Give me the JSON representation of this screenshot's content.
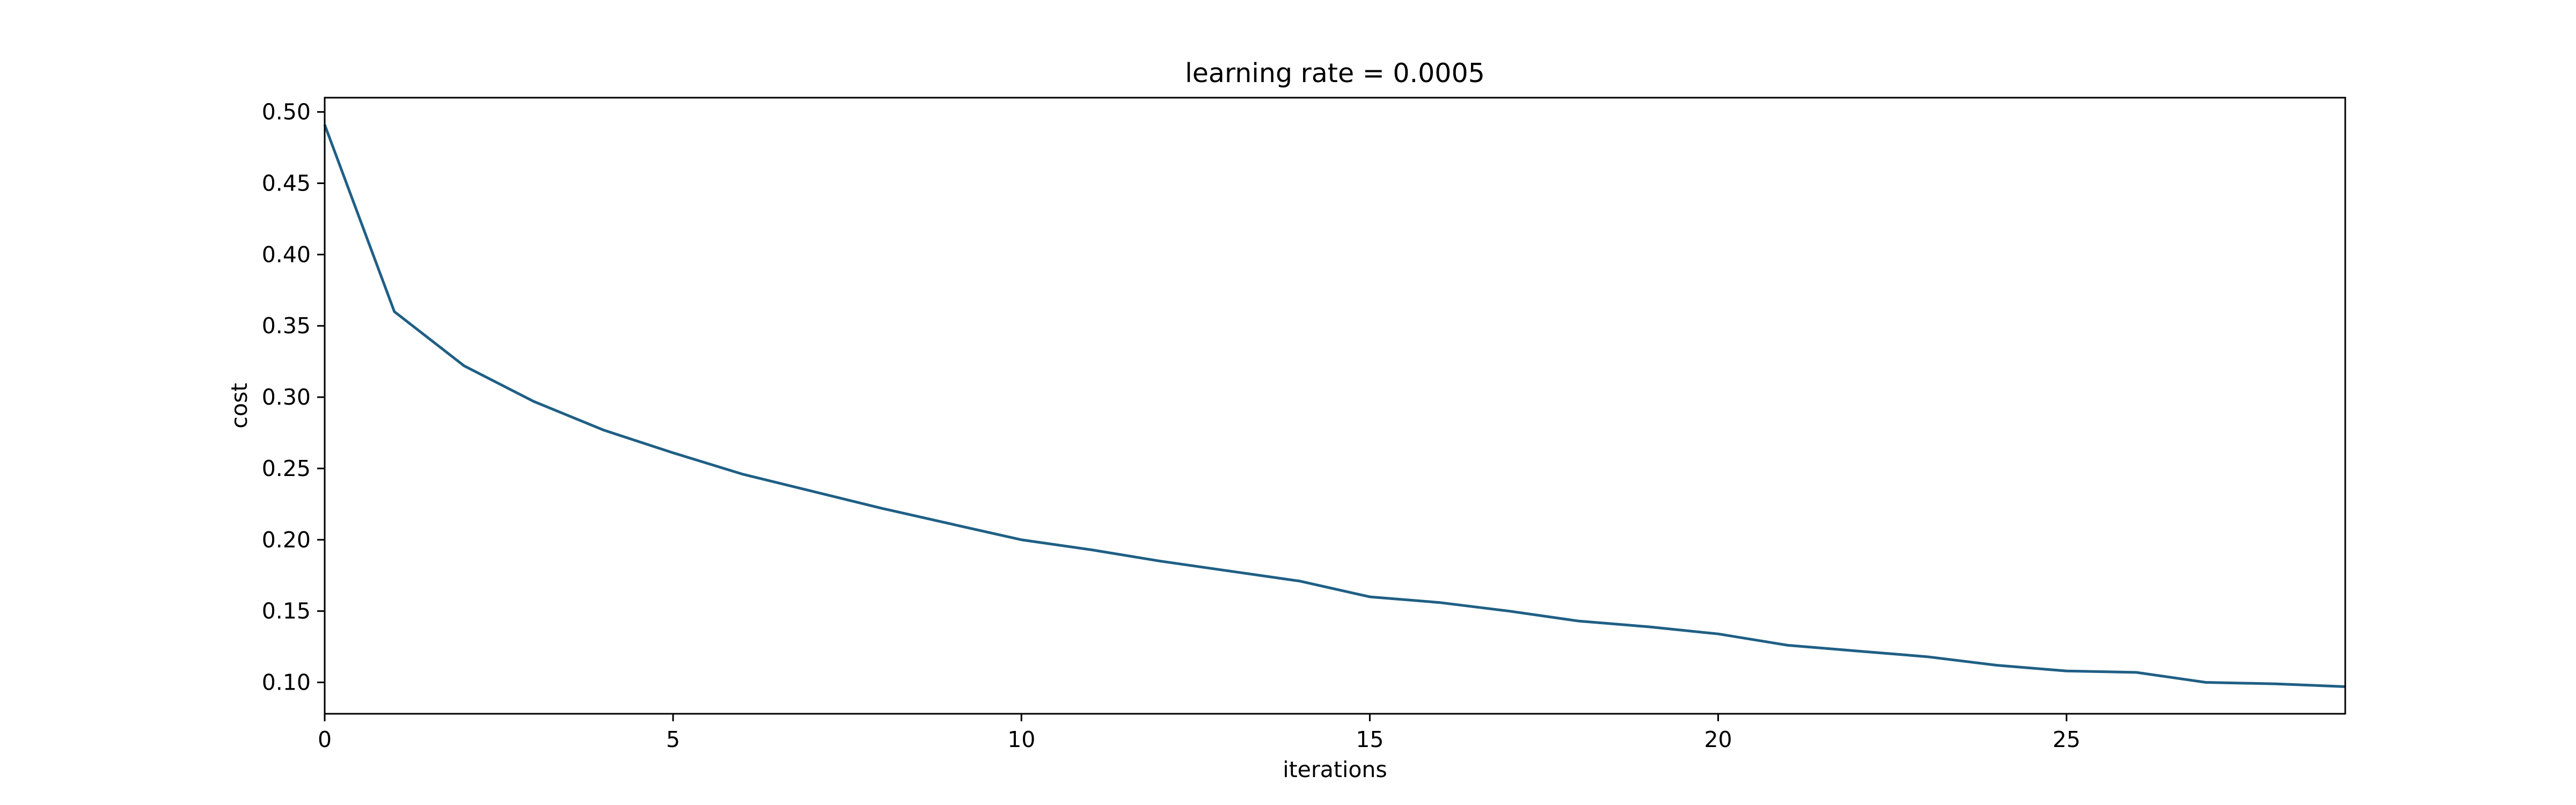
{
  "chart_data": {
    "type": "line",
    "title": "learning rate = 0.0005",
    "xlabel": "iterations",
    "ylabel": "cost",
    "xlim": [
      0,
      29
    ],
    "ylim": [
      0.078,
      0.51
    ],
    "xticks": [
      "0",
      "5",
      "10",
      "15",
      "20",
      "25"
    ],
    "yticks": [
      "0.10",
      "0.15",
      "0.20",
      "0.25",
      "0.30",
      "0.35",
      "0.40",
      "0.45",
      "0.50"
    ],
    "grid": false,
    "series": [
      {
        "color": "#1f5f85",
        "x": [
          0,
          1,
          2,
          3,
          4,
          5,
          6,
          7,
          8,
          9,
          10,
          11,
          12,
          13,
          14,
          15,
          16,
          17,
          18,
          19,
          20,
          21,
          22,
          23,
          24,
          25,
          26,
          27,
          28,
          29
        ],
        "y": [
          0.491,
          0.36,
          0.322,
          0.297,
          0.277,
          0.261,
          0.246,
          0.234,
          0.222,
          0.211,
          0.2,
          0.193,
          0.185,
          0.178,
          0.171,
          0.16,
          0.156,
          0.15,
          0.143,
          0.139,
          0.134,
          0.126,
          0.122,
          0.118,
          0.112,
          0.108,
          0.107,
          0.1,
          0.099,
          0.097
        ]
      }
    ]
  }
}
